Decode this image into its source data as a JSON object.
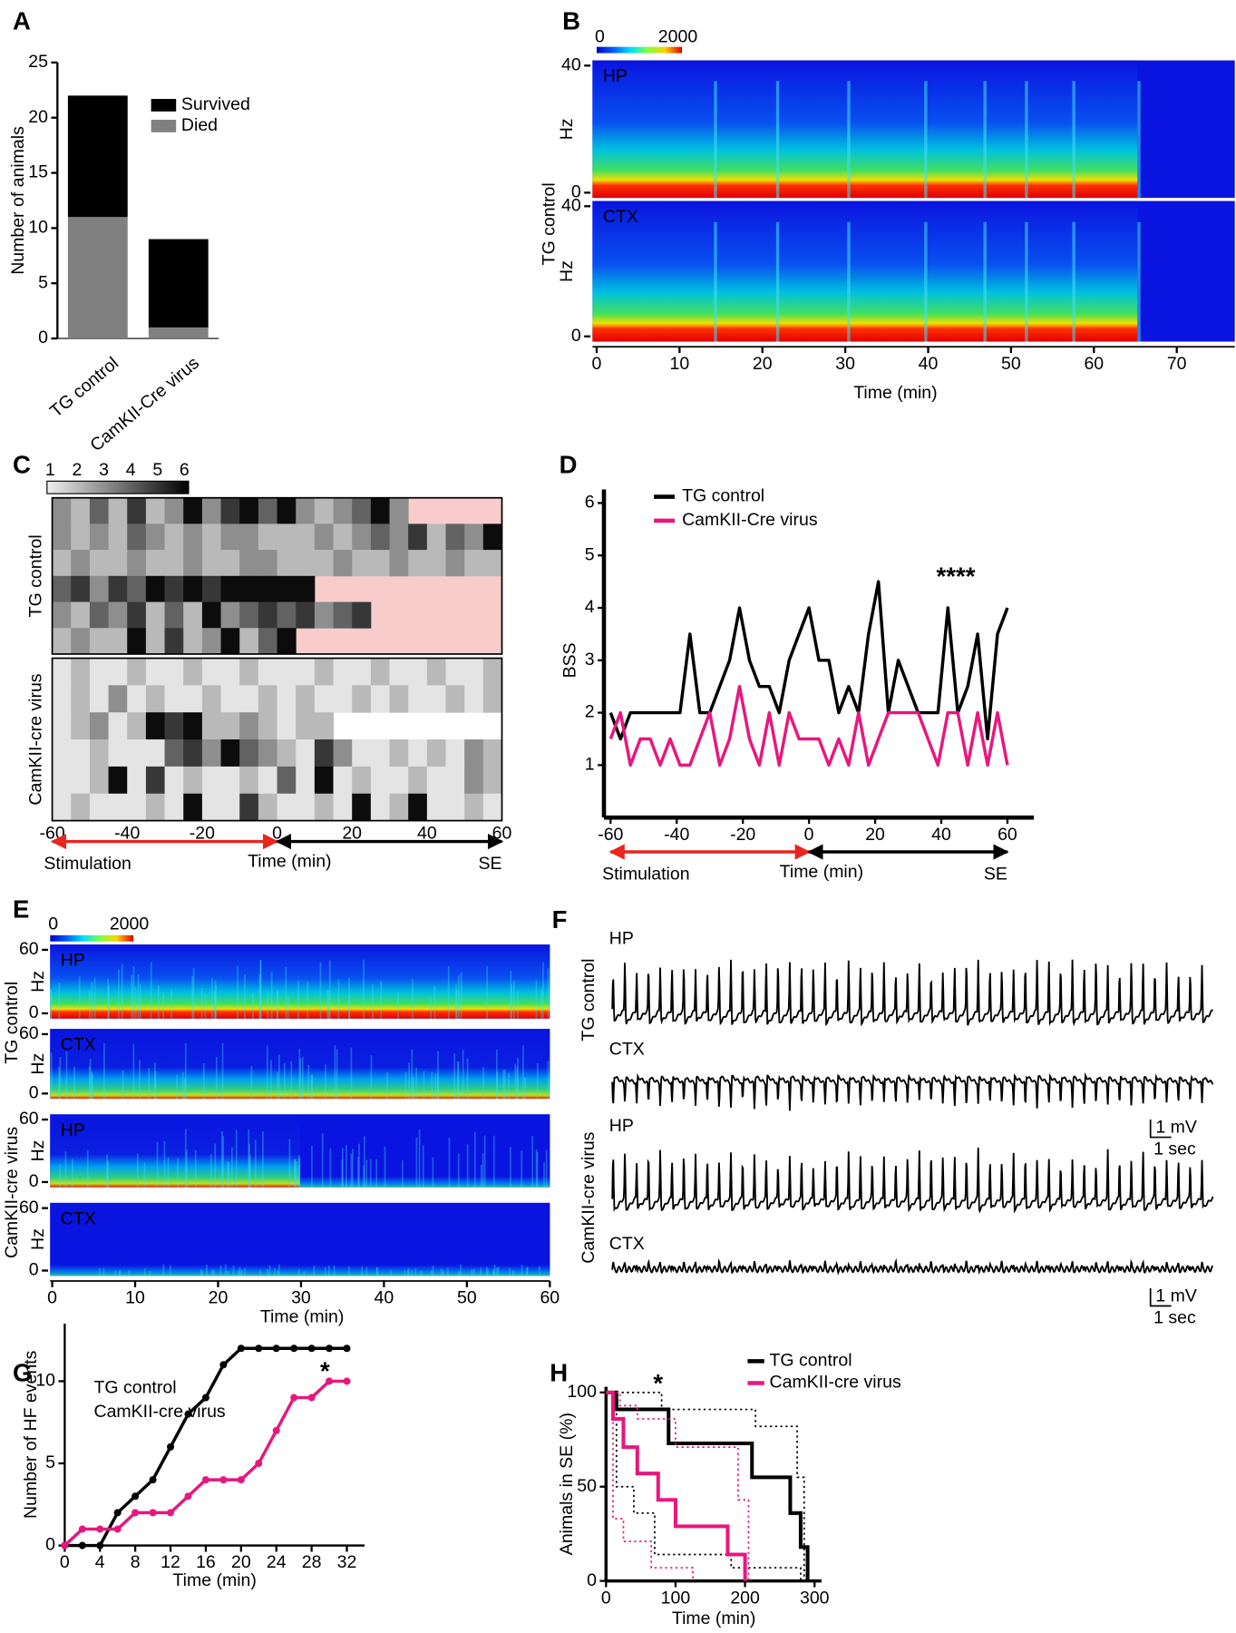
{
  "chart_data": [
    {
      "type": "bar",
      "label": "A",
      "stacked": true,
      "ylabel": "Number of animals",
      "categories": [
        "TG control",
        "CamKII-Cre virus"
      ],
      "series": [
        {
          "name": "Died",
          "color": "#808080",
          "values": [
            11,
            1
          ]
        },
        {
          "name": "Survived",
          "color": "#000000",
          "values": [
            11,
            8
          ]
        }
      ],
      "ylim": [
        0,
        25
      ],
      "yticks": [
        0,
        5,
        10,
        15,
        20,
        25
      ]
    },
    {
      "type": "spectrogram",
      "label": "B",
      "groups": [
        "TG control"
      ],
      "colorbar": [
        0,
        2000
      ],
      "panels": [
        {
          "name": "HP",
          "ylabel": "Hz",
          "ylim": [
            0,
            40
          ],
          "yticks": [
            0,
            40
          ]
        },
        {
          "name": "CTX",
          "ylabel": "Hz",
          "ylim": [
            0,
            40
          ],
          "yticks": [
            0,
            40
          ]
        }
      ],
      "xlabel": "Time (min)",
      "xlim": [
        0,
        77
      ],
      "xticks": [
        0,
        10,
        20,
        30,
        40,
        50,
        60,
        70
      ]
    },
    {
      "type": "heatmap",
      "label": "C",
      "colorbar": [
        1,
        2,
        3,
        4,
        5,
        6
      ],
      "groups": [
        {
          "name": "TG control",
          "empty_color": "#f9cccc",
          "rows": [
            [
              3,
              2,
              4,
              2,
              5,
              2,
              3,
              6,
              3,
              5,
              6,
              4,
              6,
              3,
              2,
              3,
              4,
              6,
              3,
              null,
              null,
              null,
              null,
              null
            ],
            [
              3,
              2,
              3,
              2,
              4,
              3,
              2,
              3,
              2,
              3,
              3,
              2,
              2,
              2,
              3,
              2,
              3,
              4,
              3,
              5,
              2,
              4,
              3,
              6
            ],
            [
              2,
              3,
              2,
              2,
              3,
              2,
              2,
              3,
              2,
              2,
              3,
              3,
              2,
              2,
              2,
              3,
              2,
              2,
              3,
              2,
              2,
              3,
              2,
              2
            ],
            [
              4,
              5,
              3,
              5,
              4,
              6,
              5,
              6,
              5,
              6,
              6,
              6,
              6,
              6,
              null,
              null,
              null,
              null,
              null,
              null,
              null,
              null,
              null,
              null
            ],
            [
              3,
              2,
              4,
              3,
              5,
              2,
              4,
              2,
              6,
              3,
              4,
              5,
              4,
              5,
              3,
              4,
              5,
              null,
              null,
              null,
              null,
              null,
              null,
              null
            ],
            [
              2,
              3,
              2,
              2,
              6,
              2,
              5,
              2,
              3,
              6,
              2,
              4,
              6,
              null,
              null,
              null,
              null,
              null,
              null,
              null,
              null,
              null,
              null,
              null
            ]
          ]
        },
        {
          "name": "CamKII-cre virus",
          "empty_color": "#ffffff",
          "rows": [
            [
              1,
              2,
              1,
              1,
              2,
              1,
              1,
              2,
              1,
              1,
              2,
              1,
              1,
              1,
              2,
              1,
              1,
              2,
              1,
              1,
              2,
              1,
              1,
              2
            ],
            [
              1,
              2,
              1,
              3,
              1,
              2,
              1,
              1,
              2,
              1,
              1,
              2,
              1,
              2,
              1,
              1,
              2,
              1,
              2,
              1,
              1,
              2,
              1,
              2
            ],
            [
              1,
              2,
              3,
              1,
              2,
              6,
              5,
              6,
              2,
              2,
              3,
              2,
              1,
              2,
              2,
              null,
              null,
              null,
              null,
              null,
              null,
              null,
              null,
              null
            ],
            [
              1,
              1,
              2,
              1,
              1,
              1,
              4,
              5,
              3,
              6,
              4,
              3,
              2,
              1,
              5,
              3,
              1,
              1,
              2,
              1,
              2,
              1,
              3,
              2
            ],
            [
              1,
              1,
              2,
              6,
              1,
              5,
              1,
              2,
              1,
              1,
              2,
              1,
              4,
              1,
              6,
              1,
              2,
              1,
              1,
              2,
              1,
              1,
              3,
              2
            ],
            [
              1,
              2,
              1,
              1,
              1,
              2,
              1,
              6,
              1,
              1,
              5,
              2,
              1,
              1,
              2,
              1,
              6,
              1,
              2,
              6,
              1,
              1,
              2,
              1
            ]
          ]
        }
      ],
      "xlabel": "Time (min)",
      "xlim": [
        -60,
        60
      ],
      "xticks": [
        -60,
        -40,
        -20,
        0,
        20,
        40,
        60
      ],
      "arrows": [
        {
          "text": "Stimulation",
          "color": "#e8251f"
        },
        {
          "text": "SE",
          "color": "#000000"
        }
      ]
    },
    {
      "type": "line",
      "label": "D",
      "ylabel": "BSS",
      "xlabel": "Time (min)",
      "x": [
        -60,
        -57,
        -54,
        -51,
        -48,
        -45,
        -42,
        -39,
        -36,
        -33,
        -30,
        -27,
        -24,
        -21,
        -18,
        -15,
        -12,
        -9,
        -6,
        -3,
        0,
        3,
        6,
        9,
        12,
        15,
        18,
        21,
        24,
        27,
        30,
        33,
        36,
        39,
        42,
        45,
        48,
        51,
        54,
        57,
        60
      ],
      "series": [
        {
          "name": "TG control",
          "color": "#000000",
          "values": [
            2,
            1.5,
            2,
            2,
            2,
            2,
            2,
            2,
            3.5,
            2,
            2,
            2.5,
            3,
            4,
            3,
            2.5,
            2.5,
            2,
            3,
            3.5,
            4,
            3,
            3,
            2,
            2.5,
            2,
            3.5,
            4.5,
            2,
            3,
            2.5,
            2,
            2,
            2,
            4,
            2,
            2.5,
            3.5,
            1.5,
            3.5,
            4
          ]
        },
        {
          "name": "CamKII-Cre virus",
          "color": "#e8177d",
          "values": [
            1.5,
            2,
            1,
            1.5,
            1.5,
            1,
            1.5,
            1,
            1,
            1.5,
            2,
            1,
            1.5,
            2.5,
            1.5,
            1,
            2,
            1,
            2,
            1.5,
            1.5,
            1.5,
            1,
            1.5,
            1,
            2,
            1,
            1.5,
            2,
            2,
            2,
            2,
            1.5,
            1,
            2,
            2,
            1,
            2,
            1,
            2,
            1
          ]
        }
      ],
      "xlim": [
        -62,
        68
      ],
      "ylim": [
        0,
        6
      ],
      "xticks": [
        -60,
        -40,
        -20,
        0,
        20,
        40,
        60
      ],
      "yticks": [
        1,
        2,
        3,
        4,
        5,
        6
      ],
      "annotation": "****",
      "arrows": [
        {
          "text": "Stimulation",
          "color": "#e8251f"
        },
        {
          "text": "SE",
          "color": "#000000"
        }
      ]
    },
    {
      "type": "spectrogram",
      "label": "E",
      "groups": [
        "TG control",
        "CamKII-cre virus"
      ],
      "colorbar": [
        0,
        2000
      ],
      "panels": [
        {
          "name": "HP",
          "ylabel": "Hz",
          "ylim": [
            0,
            60
          ],
          "yticks": [
            0,
            60
          ]
        },
        {
          "name": "CTX",
          "ylabel": "Hz",
          "ylim": [
            0,
            60
          ],
          "yticks": [
            0,
            60
          ]
        },
        {
          "name": "HP",
          "ylabel": "Hz",
          "ylim": [
            0,
            60
          ],
          "yticks": [
            0,
            60
          ]
        },
        {
          "name": "CTX",
          "ylabel": "Hz",
          "ylim": [
            0,
            60
          ],
          "yticks": [
            0,
            60
          ]
        }
      ],
      "xlabel": "Time (min)",
      "xlim": [
        0,
        60
      ],
      "xticks": [
        0,
        10,
        20,
        30,
        40,
        50,
        60
      ]
    },
    {
      "type": "traces",
      "label": "F",
      "groups": [
        {
          "name": "TG control",
          "traces": [
            "HP",
            "CTX"
          ],
          "scalebar": [
            "1 mV",
            "1 sec"
          ]
        },
        {
          "name": "CamKII-cre virus",
          "traces": [
            "HP",
            "CTX"
          ],
          "scalebar": [
            "1 mV",
            "1 sec"
          ]
        }
      ]
    },
    {
      "type": "line",
      "label": "G",
      "markers": true,
      "ylabel": "Number of HF events",
      "xlabel": "Time (min)",
      "x": [
        0,
        2,
        4,
        6,
        8,
        10,
        12,
        14,
        16,
        18,
        20,
        22,
        24,
        26,
        28,
        30,
        32
      ],
      "series": [
        {
          "name": "TG control",
          "color": "#000000",
          "values": [
            0,
            0,
            0,
            2,
            3,
            4,
            6,
            8,
            9,
            11,
            12,
            12,
            12,
            12,
            12,
            12,
            12
          ]
        },
        {
          "name": "CamKII-cre virus",
          "color": "#e8177d",
          "values": [
            0,
            1,
            1,
            1,
            2,
            2,
            2,
            3,
            4,
            4,
            4,
            5,
            7,
            9,
            9,
            10,
            10
          ]
        }
      ],
      "xlim": [
        0,
        34
      ],
      "ylim": [
        0,
        13.5
      ],
      "xticks": [
        0,
        4,
        8,
        12,
        16,
        20,
        24,
        28,
        32
      ],
      "yticks": [
        0,
        5,
        10
      ],
      "annotation": "*"
    },
    {
      "type": "step",
      "label": "H",
      "ylabel": "Animals in SE (%)",
      "xlabel": "Time (min)",
      "series": [
        {
          "name": "TG control",
          "color": "#000000",
          "x": [
            0,
            15,
            90,
            210,
            265,
            280,
            290
          ],
          "values": [
            100,
            91,
            73,
            55,
            36,
            18,
            0
          ],
          "ci": [
            {
              "x": [
                0,
                80,
                215,
                275,
                285
              ],
              "values": [
                100,
                91,
                82,
                55,
                0
              ]
            },
            {
              "x": [
                0,
                15,
                40,
                70,
                180,
                280
              ],
              "values": [
                100,
                50,
                36,
                14,
                7,
                0
              ]
            }
          ]
        },
        {
          "name": "CamKII-cre virus",
          "color": "#e8177d",
          "x": [
            0,
            10,
            25,
            45,
            75,
            100,
            175,
            200
          ],
          "values": [
            100,
            86,
            71,
            57,
            43,
            29,
            14,
            0
          ],
          "ci": [
            {
              "x": [
                0,
                20,
                45,
                100,
                190,
                205
              ],
              "values": [
                100,
                93,
                86,
                71,
                43,
                0
              ]
            },
            {
              "x": [
                0,
                10,
                25,
                65,
                125
              ],
              "values": [
                100,
                33,
                21,
                7,
                0
              ]
            }
          ]
        }
      ],
      "xlim": [
        0,
        310
      ],
      "ylim": [
        0,
        103
      ],
      "xticks": [
        0,
        100,
        200,
        300
      ],
      "yticks": [
        0,
        50,
        100
      ],
      "annotation": "*"
    }
  ]
}
